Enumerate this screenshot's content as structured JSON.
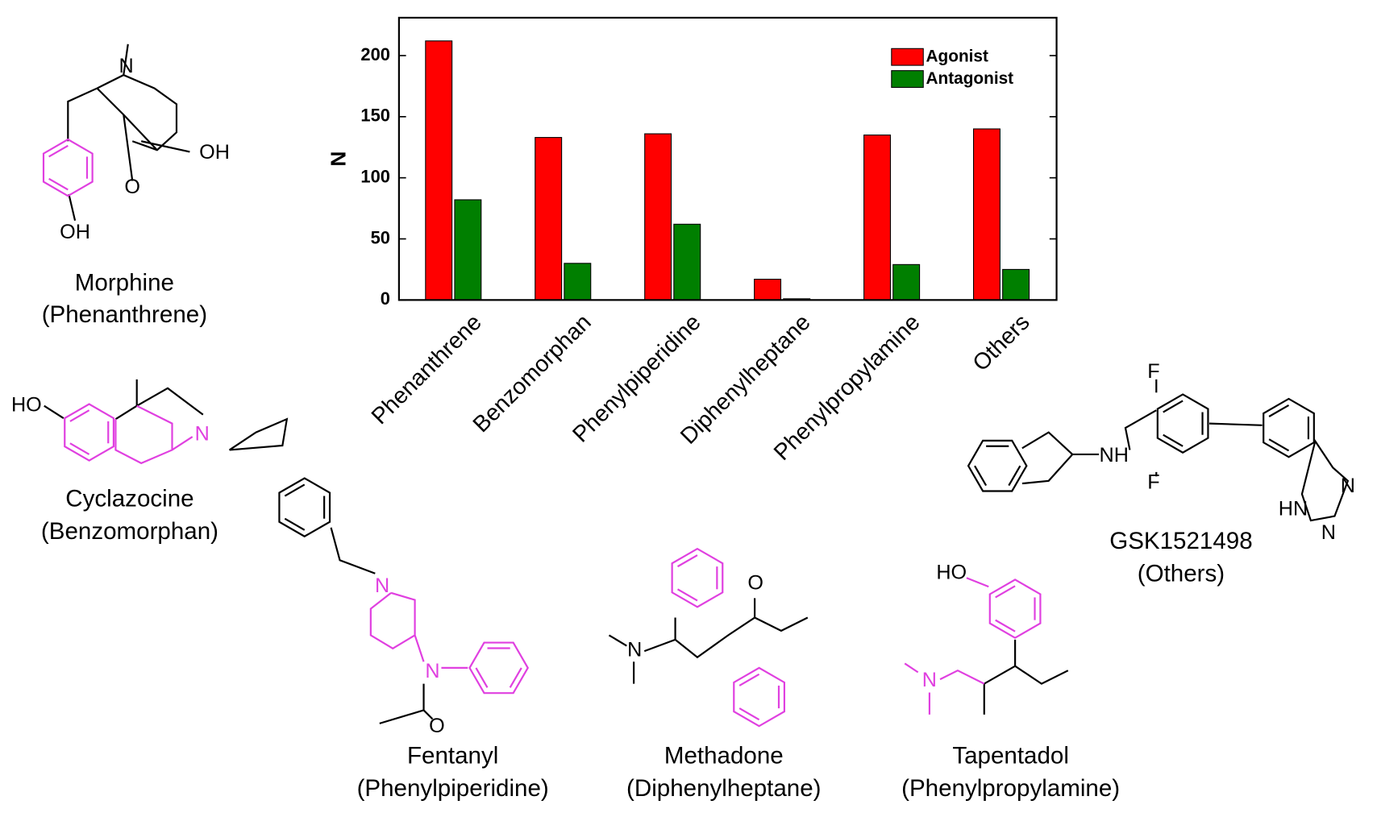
{
  "chart_data": {
    "type": "bar",
    "ylabel": "N",
    "categories": [
      "Phenanthrene",
      "Benzomorphan",
      "Phenylpiperidine",
      "Diphenylheptane",
      "Phenylpropylamine",
      "Others"
    ],
    "series": [
      {
        "name": "Agonist",
        "color": "#ff0000",
        "values": [
          212,
          133,
          136,
          17,
          135,
          140
        ]
      },
      {
        "name": "Antagonist",
        "color": "#007f00",
        "values": [
          82,
          30,
          62,
          1,
          29,
          25
        ]
      }
    ],
    "ylim": [
      0,
      231
    ],
    "yticks": [
      0,
      50,
      100,
      150,
      200
    ],
    "legend": "upper right"
  },
  "molecules": [
    {
      "name": "Morphine",
      "class": "(Phenanthrene)",
      "atoms": [
        "N",
        "OH",
        "O",
        "OH"
      ]
    },
    {
      "name": "Cyclazocine",
      "class": "(Benzomorphan)",
      "atoms": [
        "HO",
        "N"
      ]
    },
    {
      "name": "Fentanyl",
      "class": "(Phenylpiperidine)",
      "atoms": [
        "N",
        "N",
        "O"
      ]
    },
    {
      "name": "Methadone",
      "class": "(Diphenylheptane)",
      "atoms": [
        "N",
        "O"
      ]
    },
    {
      "name": "Tapentadol",
      "class": "(Phenylpropylamine)",
      "atoms": [
        "HO",
        "N"
      ]
    },
    {
      "name": "GSK1521498",
      "class": "(Others)",
      "atoms": [
        "F",
        "NH",
        "F",
        "N",
        "HN",
        "N"
      ]
    }
  ]
}
